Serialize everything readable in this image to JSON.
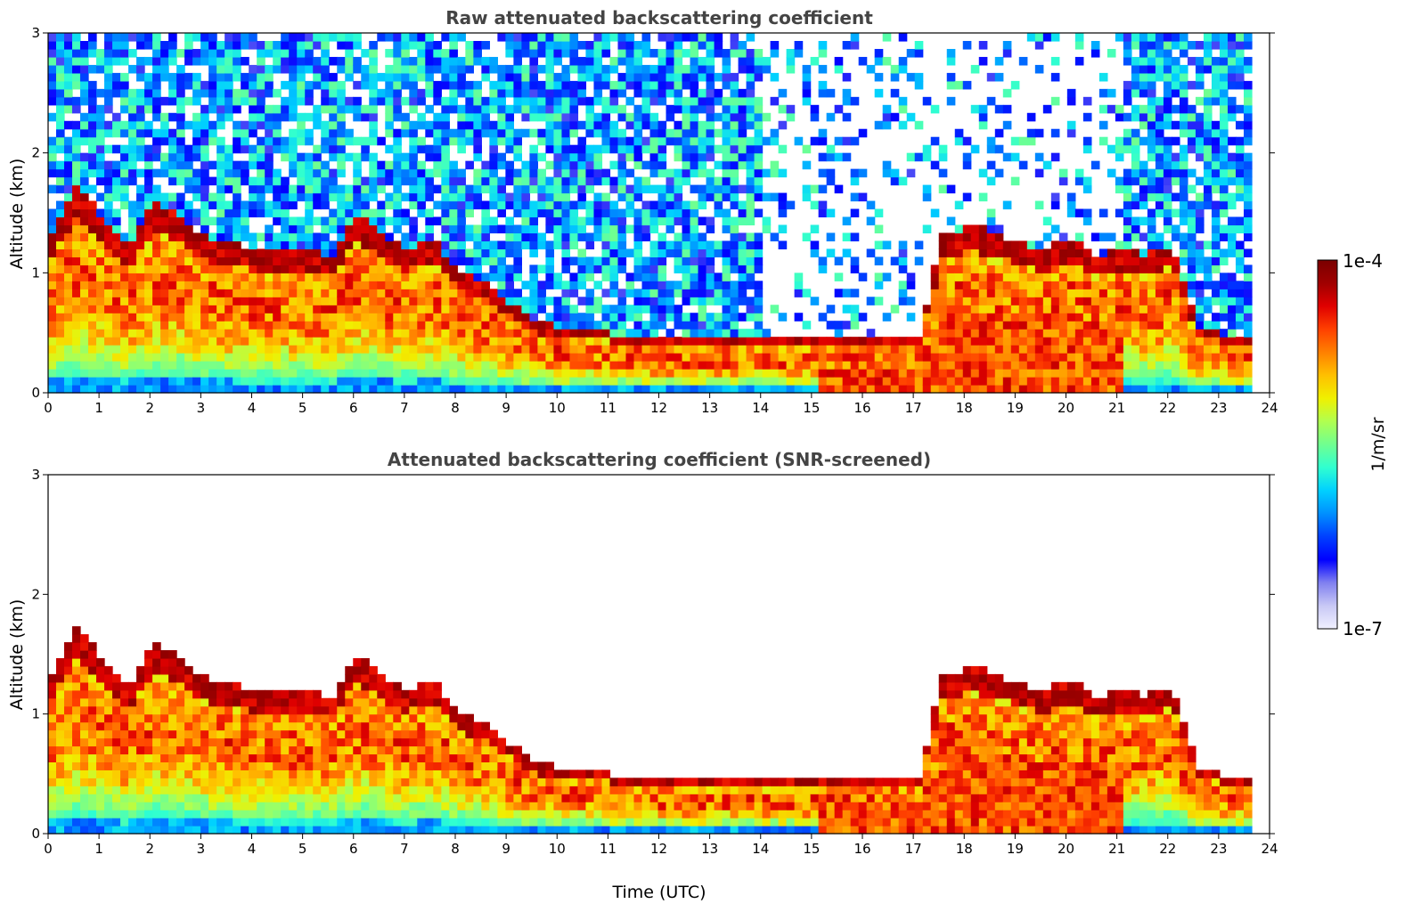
{
  "chart_data": [
    {
      "type": "heatmap",
      "title": "Raw attenuated backscattering coefficient",
      "xlabel": "",
      "ylabel": "Altitude (km)",
      "xlim": [
        0,
        24
      ],
      "ylim": [
        0,
        3
      ],
      "xticks": [
        "0",
        "1",
        "2",
        "3",
        "4",
        "5",
        "6",
        "7",
        "8",
        "9",
        "10",
        "11",
        "12",
        "13",
        "14",
        "15",
        "16",
        "17",
        "18",
        "19",
        "20",
        "21",
        "22",
        "23",
        "24"
      ],
      "yticks": [
        "0",
        "1",
        "2",
        "3"
      ],
      "data_end_hour": 23.65,
      "layer_top_km": [
        1.35,
        1.75,
        1.45,
        1.2,
        1.6,
        1.5,
        1.3,
        1.25,
        1.2,
        1.2,
        1.2,
        1.15,
        1.5,
        1.3,
        1.2,
        1.3,
        1.0,
        0.95,
        0.75,
        0.6,
        0.55,
        0.55,
        0.5,
        0.5,
        0.45,
        0.45,
        0.45,
        0.5,
        0.45,
        0.45,
        0.45,
        0.45,
        0.5,
        0.5,
        0.45,
        1.3,
        1.4,
        1.35,
        1.25,
        1.2,
        1.3,
        1.15,
        1.2,
        1.15,
        1.25,
        0.55,
        0.5,
        0.45,
        0.42
      ],
      "noise_background": true
    },
    {
      "type": "heatmap",
      "title": "Attenuated backscattering coefficient (SNR-screened)",
      "xlabel": "Time (UTC)",
      "ylabel": "Altitude (km)",
      "xlim": [
        0,
        24
      ],
      "ylim": [
        0,
        3
      ],
      "xticks": [
        "0",
        "1",
        "2",
        "3",
        "4",
        "5",
        "6",
        "7",
        "8",
        "9",
        "10",
        "11",
        "12",
        "13",
        "14",
        "15",
        "16",
        "17",
        "18",
        "19",
        "20",
        "21",
        "22",
        "23",
        "24"
      ],
      "yticks": [
        "0",
        "1",
        "2",
        "3"
      ],
      "data_end_hour": 23.65,
      "layer_top_km": [
        1.35,
        1.75,
        1.45,
        1.2,
        1.6,
        1.5,
        1.3,
        1.25,
        1.2,
        1.2,
        1.2,
        1.15,
        1.5,
        1.3,
        1.2,
        1.3,
        1.0,
        0.95,
        0.75,
        0.6,
        0.55,
        0.55,
        0.5,
        0.5,
        0.45,
        0.45,
        0.45,
        0.5,
        0.45,
        0.45,
        0.45,
        0.45,
        0.5,
        0.5,
        0.45,
        1.3,
        1.4,
        1.35,
        1.25,
        1.2,
        1.3,
        1.15,
        1.2,
        1.15,
        1.25,
        0.55,
        0.5,
        0.45,
        0.42
      ],
      "noise_background": false
    }
  ],
  "colorbar": {
    "label": "1/m/sr",
    "max_label": "1e-4",
    "min_label": "1e-7",
    "colors": [
      "#f0f0ff",
      "#c8c8f5",
      "#8080f0",
      "#0000ff",
      "#0040ff",
      "#0090ff",
      "#00d0ff",
      "#30ffd0",
      "#70ff90",
      "#b0ff50",
      "#f0f000",
      "#ffc000",
      "#ff8000",
      "#ff4000",
      "#e00000",
      "#a00000",
      "#7a0000"
    ]
  }
}
